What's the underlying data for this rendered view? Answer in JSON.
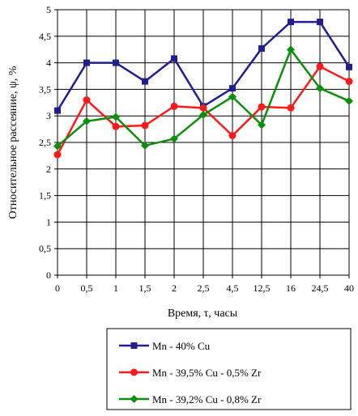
{
  "chart_data": {
    "type": "line",
    "title": "",
    "xlabel": "Время, τ, часы",
    "ylabel": "Относительное рассеяние, ψ, %",
    "categories": [
      "0",
      "0,5",
      "1",
      "1,5",
      "2",
      "2,5",
      "4,5",
      "12,5",
      "16",
      "24,5",
      "40"
    ],
    "ylim": [
      0,
      5
    ],
    "yticks": [
      0,
      0.5,
      1,
      1.5,
      2,
      2.5,
      3,
      3.5,
      4,
      4.5,
      5
    ],
    "ytick_labels": [
      "0",
      "0,5",
      "1",
      "1,5",
      "2",
      "2,5",
      "3",
      "3,5",
      "4",
      "4,5",
      "5"
    ],
    "grid": true,
    "legend_position": "bottom",
    "series": [
      {
        "name": "Mn - 40% Cu",
        "color": "#1f1f8f",
        "marker": "square",
        "values": [
          3.1,
          4.0,
          4.0,
          3.65,
          4.08,
          3.18,
          3.52,
          4.27,
          4.77,
          4.77,
          3.92
        ]
      },
      {
        "name": "Mn - 39,5% Cu - 0,5% Zr",
        "color": "#ff1a1a",
        "marker": "circle",
        "values": [
          2.27,
          3.3,
          2.8,
          2.82,
          3.18,
          3.15,
          2.63,
          3.17,
          3.15,
          3.93,
          3.65
        ]
      },
      {
        "name": "Mn - 39,2% Cu - 0,8% Zr",
        "color": "#0b8f0b",
        "marker": "diamond",
        "values": [
          2.43,
          2.9,
          2.98,
          2.44,
          2.57,
          3.02,
          3.36,
          2.83,
          4.25,
          3.52,
          3.28
        ]
      }
    ]
  }
}
